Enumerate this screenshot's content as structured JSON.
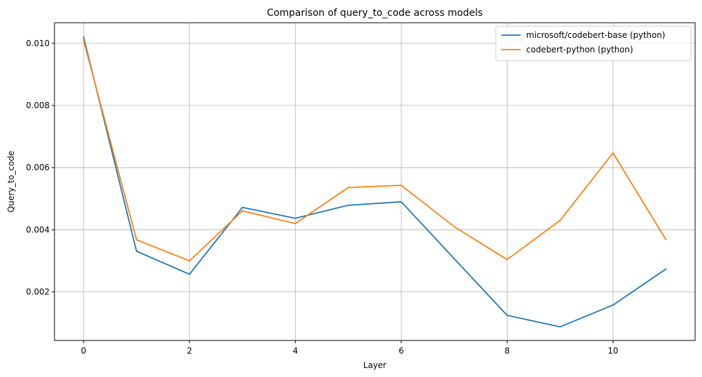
{
  "chart_data": {
    "type": "line",
    "title": "Comparison of query_to_code across models",
    "xlabel": "Layer",
    "ylabel": "Query_to_code",
    "x": [
      0,
      1,
      2,
      3,
      4,
      5,
      6,
      7,
      8,
      9,
      10,
      11
    ],
    "xticks": [
      0,
      2,
      4,
      6,
      8,
      10
    ],
    "xtick_labels": [
      "0",
      "2",
      "4",
      "6",
      "8",
      "10"
    ],
    "yticks": [
      0.002,
      0.004,
      0.006,
      0.008,
      0.01
    ],
    "ytick_labels": [
      "0.002",
      "0.004",
      "0.006",
      "0.008",
      "0.010"
    ],
    "xlim": [
      -0.55,
      11.55
    ],
    "ylim": [
      0.00044,
      0.01066
    ],
    "grid": true,
    "legend_position": "top-right",
    "series": [
      {
        "name": "microsoft/codebert-base (python)",
        "color": "#1f77b4",
        "values": [
          0.0102,
          0.00331,
          0.00257,
          0.00472,
          0.00437,
          0.00479,
          0.0049,
          0.00307,
          0.00125,
          0.00088,
          0.00158,
          0.00274
        ]
      },
      {
        "name": "codebert-python (python)",
        "color": "#ff7f0e",
        "values": [
          0.0101,
          0.00368,
          0.003,
          0.00461,
          0.0042,
          0.00536,
          0.00543,
          0.0041,
          0.00304,
          0.0043,
          0.00647,
          0.00368
        ]
      }
    ]
  }
}
